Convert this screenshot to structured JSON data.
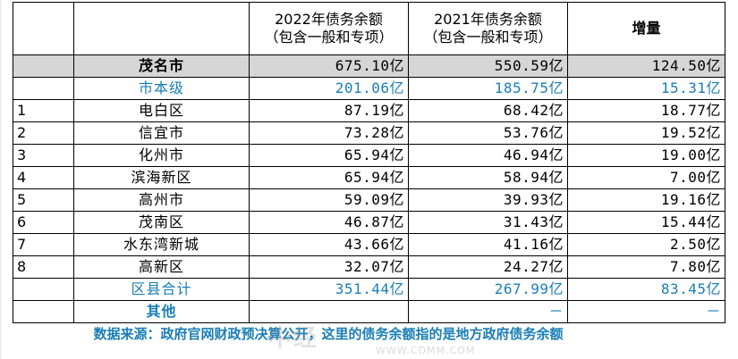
{
  "table": {
    "header": {
      "col_2022": "2022年债务余额\n（包含一般和专项）",
      "col_2022_line1": "2022年债务余额",
      "col_2022_line2": "（包含一般和专项）",
      "col_2021_line1": "2021年债务余额",
      "col_2021_line2": "（包含一般和专项）",
      "col_increase": "增量"
    },
    "total_row": {
      "name": "茂名市",
      "v2022": "675.10亿",
      "v2021": "550.59亿",
      "inc": "124.50亿"
    },
    "city_level_row": {
      "name": "市本级",
      "v2022": "201.06亿",
      "v2021": "185.75亿",
      "inc": "15.31亿"
    },
    "rows": [
      {
        "idx": "1",
        "name": "电白区",
        "v2022": "87.19亿",
        "v2021": "68.42亿",
        "inc": "18.77亿"
      },
      {
        "idx": "2",
        "name": "信宜市",
        "v2022": "73.28亿",
        "v2021": "53.76亿",
        "inc": "19.52亿"
      },
      {
        "idx": "3",
        "name": "化州市",
        "v2022": "65.94亿",
        "v2021": "46.94亿",
        "inc": "19.00亿"
      },
      {
        "idx": "4",
        "name": "滨海新区",
        "v2022": "65.94亿",
        "v2021": "58.94亿",
        "inc": "7.00亿"
      },
      {
        "idx": "5",
        "name": "高州市",
        "v2022": "59.09亿",
        "v2021": "39.93亿",
        "inc": "19.16亿"
      },
      {
        "idx": "6",
        "name": "茂南区",
        "v2022": "46.87亿",
        "v2021": "31.43亿",
        "inc": "15.44亿"
      },
      {
        "idx": "7",
        "name": "水东湾新城",
        "v2022": "43.66亿",
        "v2021": "41.16亿",
        "inc": "2.50亿"
      },
      {
        "idx": "8",
        "name": "高新区",
        "v2022": "32.07亿",
        "v2021": "24.27亿",
        "inc": "7.80亿"
      }
    ],
    "county_total_row": {
      "name": "区县合计",
      "v2022": "351.44亿",
      "v2021": "267.99亿",
      "inc": "83.45亿"
    },
    "other_row": {
      "name": "其他",
      "v2022": "",
      "v2021": "－",
      "inc": "－"
    },
    "source_note": "数据来源：政府官网财政预决算公开，这里的债务余额指的是地方政府债务余额"
  },
  "watermark": {
    "text": "中经",
    "sub": "WWW.CDMM.COM"
  },
  "colors": {
    "accent_blue": "#1a7eb5",
    "total_row_bg": "#d6d6d6"
  }
}
